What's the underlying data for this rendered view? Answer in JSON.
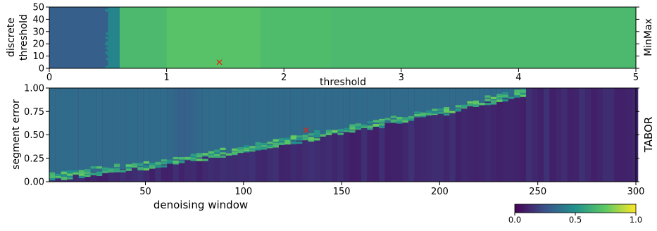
{
  "chart_data": [
    {
      "type": "heatmap",
      "panel_label": "MinMax",
      "xlabel": "threshold",
      "ylabel_line1": "discrete",
      "ylabel_line2": "threshold",
      "xlim": [
        0,
        5
      ],
      "ylim": [
        0,
        50
      ],
      "x_ticks": [
        "0",
        "1",
        "2",
        "3",
        "4",
        "5"
      ],
      "y_ticks": [
        "0",
        "10",
        "20",
        "30",
        "40",
        "50"
      ],
      "x_tick_values": [
        0,
        1,
        2,
        3,
        4,
        5
      ],
      "y_tick_values": [
        0,
        10,
        20,
        30,
        40,
        50
      ],
      "optimum_marker": {
        "x": 1.45,
        "y": 5
      },
      "regions": [
        {
          "x_from": 0.0,
          "x_to": 0.5,
          "value": 0.3
        },
        {
          "x_from": 0.5,
          "x_to": 0.6,
          "value": 0.45
        },
        {
          "x_from": 0.6,
          "x_to": 1.0,
          "value": 0.68
        },
        {
          "x_from": 1.0,
          "x_to": 1.8,
          "value": 0.72
        },
        {
          "x_from": 1.8,
          "x_to": 2.4,
          "value": 0.69
        },
        {
          "x_from": 2.4,
          "x_to": 5.0,
          "value": 0.68
        }
      ]
    },
    {
      "type": "heatmap",
      "panel_label": "TABOR",
      "xlabel": "denoising window",
      "ylabel": "segment error",
      "xlim": [
        1,
        300
      ],
      "ylim": [
        0,
        1
      ],
      "x_ticks": [
        "50",
        "100",
        "150",
        "200",
        "250",
        "300"
      ],
      "y_ticks": [
        "0.00",
        "0.25",
        "0.50",
        "0.75",
        "1.00"
      ],
      "x_tick_values": [
        50,
        100,
        150,
        200,
        250,
        300
      ],
      "y_tick_values": [
        0,
        0.25,
        0.5,
        0.75,
        1.0
      ],
      "optimum_marker": {
        "x": 132,
        "y": 0.55
      },
      "boundary": {
        "x": [
          1,
          50,
          100,
          150,
          200,
          244
        ],
        "y": [
          0.04,
          0.16,
          0.33,
          0.53,
          0.73,
          0.95
        ]
      },
      "region_values": {
        "above_boundary": 0.35,
        "below_boundary": 0.12,
        "boundary_band": 0.62
      }
    }
  ],
  "colorbar": {
    "ticks": [
      "0.0",
      "0.5",
      "1.0"
    ],
    "tick_values": [
      0,
      0.5,
      1.0
    ],
    "colormap": [
      "#440154",
      "#3b528b",
      "#21918c",
      "#5ec962",
      "#fde725"
    ]
  }
}
